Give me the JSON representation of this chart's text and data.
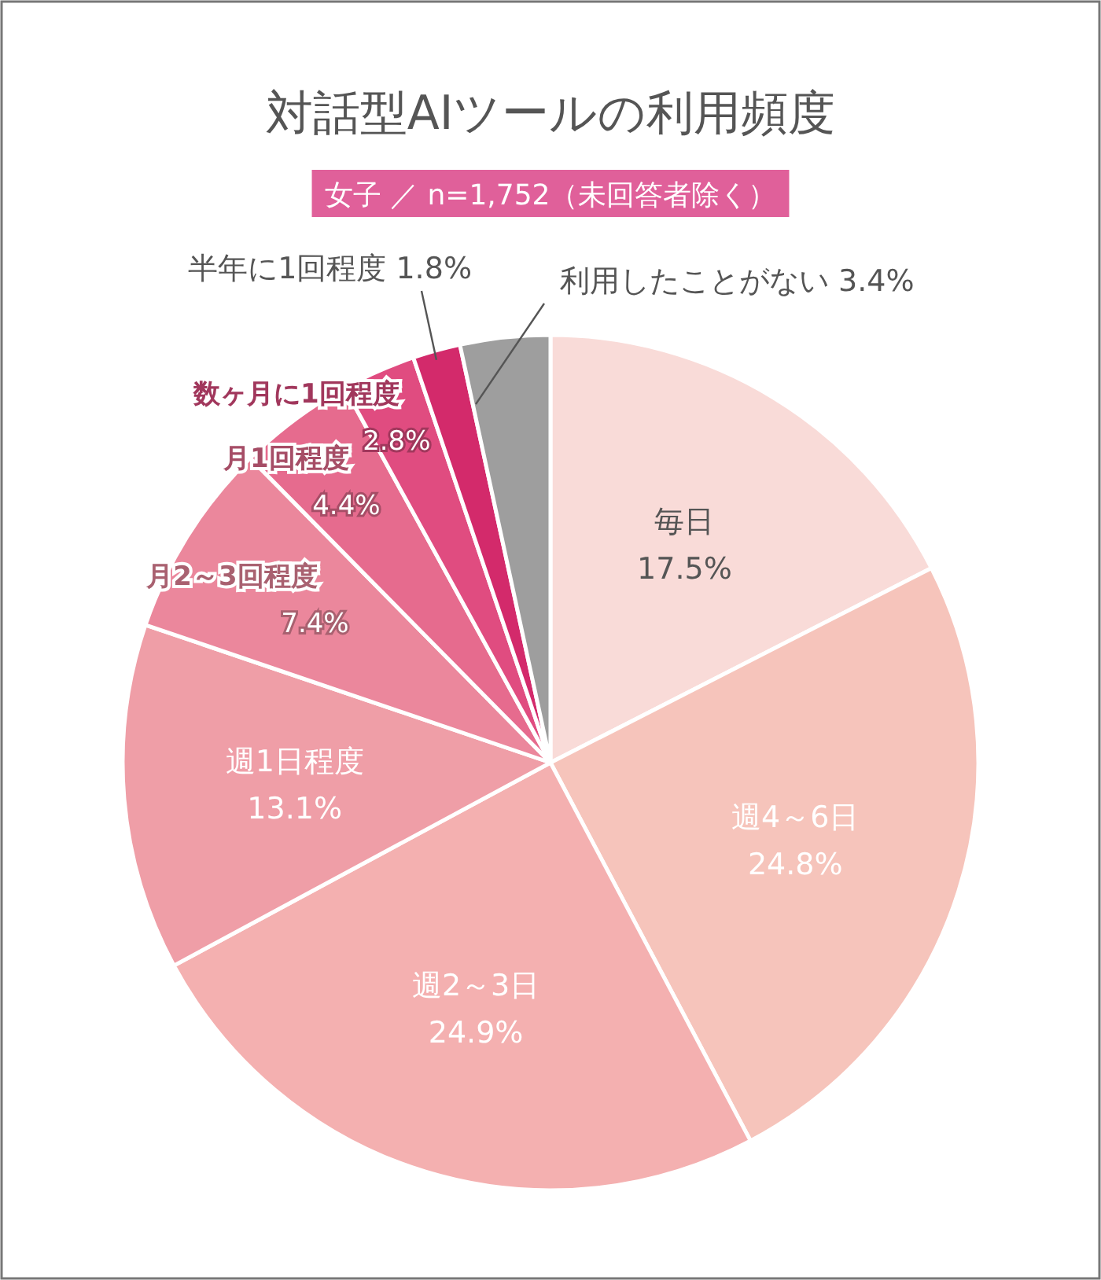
{
  "chart_data": {
    "type": "pie",
    "title": "対話型AIツールの利用頻度",
    "subtitle": "女子 ／ n=1,752（未回答者除く）",
    "categories": [
      "毎日",
      "週4～6日",
      "週2～3日",
      "週1日程度",
      "月2～3回程度",
      "月1回程度",
      "数ヶ月に1回程度",
      "半年に1回程度",
      "利用したことがない"
    ],
    "values": [
      17.5,
      24.8,
      24.9,
      13.1,
      7.4,
      4.4,
      2.8,
      1.8,
      3.4
    ],
    "colors": [
      "#f9dbd8",
      "#f6c4bb",
      "#f4b0b0",
      "#ef9ea7",
      "#eb879c",
      "#e66b8e",
      "#e04c80",
      "#d32a6b",
      "#9e9e9e"
    ],
    "value_labels": [
      "17.5%",
      "24.8%",
      "24.9%",
      "13.1%",
      "7.4%",
      "4.4%",
      "2.8%",
      "1.8%",
      "3.4%"
    ]
  }
}
